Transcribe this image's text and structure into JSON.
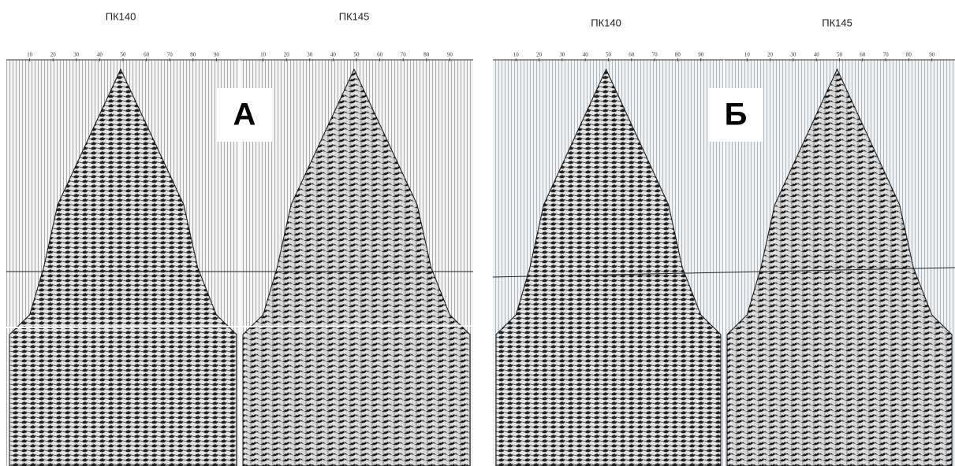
{
  "panels": [
    {
      "label": "А",
      "records": [
        {
          "title": "ПК140",
          "ticks": [
            "10",
            "20",
            "30",
            "40",
            "50",
            "60",
            "70",
            "80",
            "90"
          ]
        },
        {
          "title": "ПК145",
          "ticks": [
            "10",
            "20",
            "30",
            "40",
            "50",
            "60",
            "70",
            "80",
            "90"
          ]
        }
      ]
    },
    {
      "label": "Б",
      "records": [
        {
          "title": "ПК140",
          "ticks": [
            "10",
            "20",
            "30",
            "40",
            "50",
            "60",
            "70",
            "80",
            "90"
          ]
        },
        {
          "title": "ПК145",
          "ticks": [
            "10",
            "20",
            "30",
            "40",
            "50",
            "60",
            "70",
            "80",
            "90"
          ]
        }
      ]
    }
  ]
}
